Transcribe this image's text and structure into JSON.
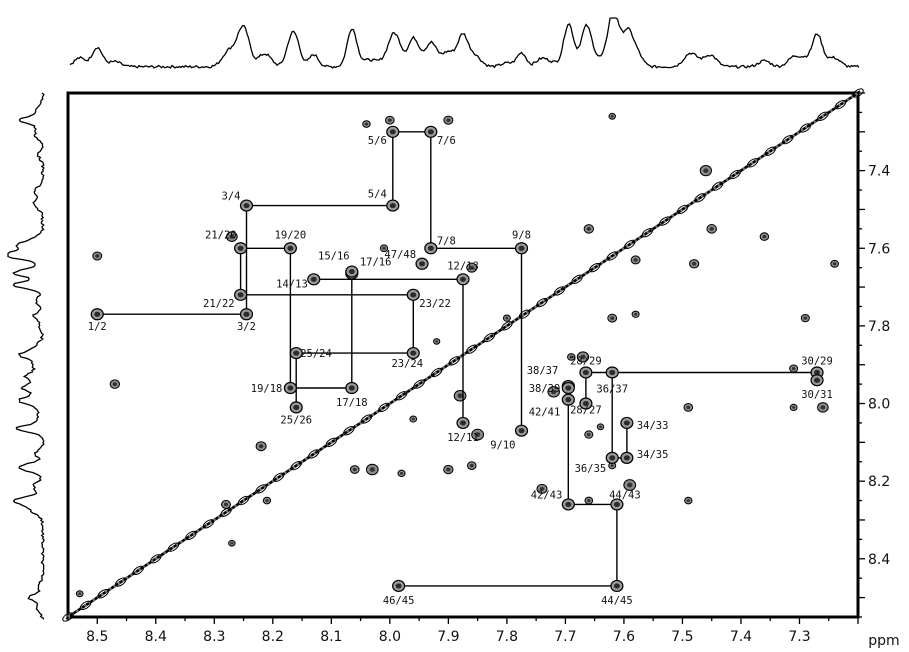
{
  "chart_data": {
    "type": "scatter",
    "subtype": "2D NMR spectrum (amide region, sequential connectivity walk)",
    "title": "",
    "xlabel": "ppm",
    "ylabel": "",
    "xlim": [
      8.55,
      7.2
    ],
    "ylim": [
      7.2,
      8.55
    ],
    "x_reversed": true,
    "y_reversed": true,
    "grid": false,
    "x_ticks": [
      8.5,
      8.4,
      8.3,
      8.2,
      8.1,
      8.0,
      7.9,
      7.8,
      7.7,
      7.6,
      7.5,
      7.4,
      7.3
    ],
    "x_tick_labels": [
      "8.5",
      "8.4",
      "8.3",
      "8.2",
      "8.1",
      "8.0",
      "7.9",
      "7.8",
      "7.7",
      "7.6",
      "7.5",
      "7.4",
      "7.3"
    ],
    "x_unit_label": "ppm",
    "y_ticks": [
      7.4,
      7.6,
      7.8,
      8.0,
      8.2,
      8.4
    ],
    "y_tick_labels": [
      "7.4",
      "7.6",
      "7.8",
      "8.0",
      "8.2",
      "8.4"
    ],
    "cross_peaks": [
      {
        "label": "1/2",
        "x": 8.5,
        "y": 7.77
      },
      {
        "label": "3/2",
        "x": 8.245,
        "y": 7.77
      },
      {
        "label": "3/4",
        "x": 8.245,
        "y": 7.49
      },
      {
        "label": "5/4",
        "x": 7.995,
        "y": 7.49
      },
      {
        "label": "5/6",
        "x": 7.995,
        "y": 7.3
      },
      {
        "label": "7/6",
        "x": 7.93,
        "y": 7.3
      },
      {
        "label": "7/8",
        "x": 7.93,
        "y": 7.6
      },
      {
        "label": "9/8",
        "x": 7.775,
        "y": 7.6
      },
      {
        "label": "9/10",
        "x": 7.775,
        "y": 8.07
      },
      {
        "label": "12/13",
        "x": 7.875,
        "y": 7.68
      },
      {
        "label": "12/11",
        "x": 7.875,
        "y": 8.05
      },
      {
        "label": "14/13",
        "x": 8.13,
        "y": 7.68
      },
      {
        "label": "15/16",
        "x": 8.065,
        "y": 7.665
      },
      {
        "label": "17/16",
        "x": 8.065,
        "y": 7.66
      },
      {
        "label": "17/18",
        "x": 8.065,
        "y": 7.96
      },
      {
        "label": "19/18",
        "x": 8.17,
        "y": 7.96
      },
      {
        "label": "19/20",
        "x": 8.17,
        "y": 7.6
      },
      {
        "label": "21/20",
        "x": 8.255,
        "y": 7.6
      },
      {
        "label": "21/22",
        "x": 8.255,
        "y": 7.72
      },
      {
        "label": "23/22",
        "x": 7.96,
        "y": 7.72
      },
      {
        "label": "23/24",
        "x": 7.96,
        "y": 7.87
      },
      {
        "label": "25/24",
        "x": 8.16,
        "y": 7.87
      },
      {
        "label": "25/26",
        "x": 8.16,
        "y": 8.01
      },
      {
        "label": "47/48",
        "x": 7.945,
        "y": 7.64
      },
      {
        "label": "28/27",
        "x": 7.665,
        "y": 8.0
      },
      {
        "label": "28/29",
        "x": 7.665,
        "y": 7.92
      },
      {
        "label": "30/29",
        "x": 7.27,
        "y": 7.92
      },
      {
        "label": "30/31",
        "x": 7.27,
        "y": 7.94
      },
      {
        "label": "36/37",
        "x": 7.62,
        "y": 7.92
      },
      {
        "label": "36/35",
        "x": 7.62,
        "y": 8.14
      },
      {
        "label": "34/35",
        "x": 7.595,
        "y": 8.14
      },
      {
        "label": "34/33",
        "x": 7.595,
        "y": 8.05
      },
      {
        "label": "38/37",
        "x": 7.695,
        "y": 7.955
      },
      {
        "label": "38/39",
        "x": 7.695,
        "y": 7.96
      },
      {
        "label": "42/41",
        "x": 7.695,
        "y": 7.99
      },
      {
        "label": "42/43",
        "x": 7.695,
        "y": 8.26
      },
      {
        "label": "44/43",
        "x": 7.612,
        "y": 8.26
      },
      {
        "label": "44/45",
        "x": 7.612,
        "y": 8.47
      },
      {
        "label": "46/45",
        "x": 7.985,
        "y": 8.47
      }
    ],
    "connectivity_paths": [
      {
        "points": [
          [
            8.5,
            7.77
          ],
          [
            8.245,
            7.77
          ],
          [
            8.245,
            7.49
          ],
          [
            7.995,
            7.49
          ],
          [
            7.995,
            7.3
          ],
          [
            7.93,
            7.3
          ],
          [
            7.93,
            7.6
          ],
          [
            7.775,
            7.6
          ],
          [
            7.775,
            8.07
          ]
        ]
      },
      {
        "points": [
          [
            7.875,
            8.05
          ],
          [
            7.875,
            7.68
          ],
          [
            8.13,
            7.68
          ]
        ]
      },
      {
        "points": [
          [
            8.065,
            7.665
          ],
          [
            8.065,
            7.96
          ],
          [
            8.17,
            7.96
          ],
          [
            8.17,
            7.6
          ],
          [
            8.255,
            7.6
          ],
          [
            8.255,
            7.72
          ],
          [
            7.96,
            7.72
          ],
          [
            7.96,
            7.87
          ],
          [
            8.16,
            7.87
          ],
          [
            8.16,
            8.01
          ]
        ]
      },
      {
        "points": [
          [
            7.665,
            8.0
          ],
          [
            7.665,
            7.92
          ],
          [
            7.27,
            7.92
          ]
        ]
      },
      {
        "points": [
          [
            7.62,
            7.92
          ],
          [
            7.62,
            8.14
          ],
          [
            7.595,
            8.14
          ],
          [
            7.595,
            8.05
          ]
        ]
      },
      {
        "points": [
          [
            7.695,
            7.955
          ],
          [
            7.695,
            8.26
          ],
          [
            7.612,
            8.26
          ],
          [
            7.612,
            8.47
          ],
          [
            7.985,
            8.47
          ]
        ]
      }
    ]
  }
}
